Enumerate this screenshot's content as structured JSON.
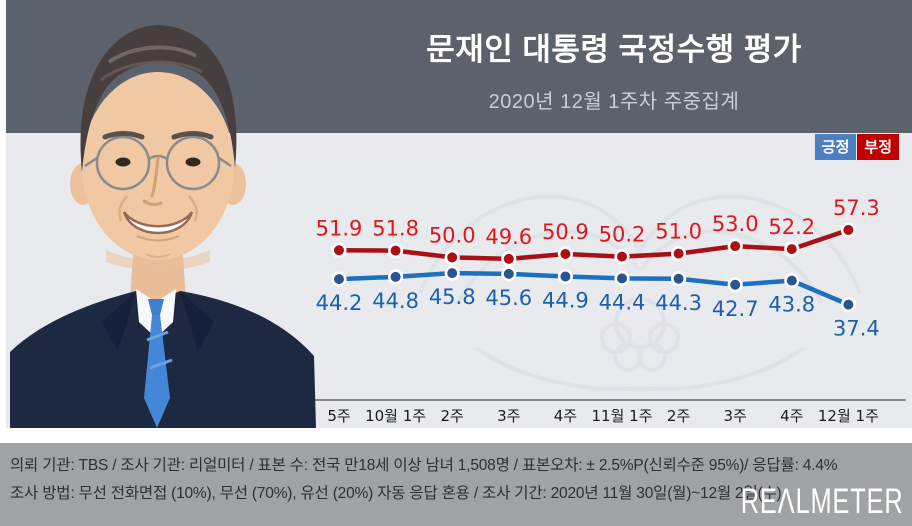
{
  "header": {
    "title": "문재인 대통령 국정수행 평가",
    "subtitle": "2020년 12월 1주차 주중집계"
  },
  "legend": {
    "positive": "긍정",
    "negative": "부정"
  },
  "chart_data": {
    "type": "line",
    "categories": [
      "5주",
      "10월 1주",
      "2주",
      "3주",
      "4주",
      "11월 1주",
      "2주",
      "3주",
      "4주",
      "12월 1주"
    ],
    "series": [
      {
        "name": "긍정",
        "role": "positive",
        "values": [
          44.2,
          44.8,
          45.8,
          45.6,
          44.9,
          44.4,
          44.3,
          42.7,
          43.8,
          37.4
        ]
      },
      {
        "name": "부정",
        "role": "negative",
        "values": [
          51.9,
          51.8,
          50.0,
          49.6,
          50.9,
          50.2,
          51.0,
          53.0,
          52.2,
          57.3
        ]
      }
    ],
    "title": "문재인 대통령 국정수행 평가",
    "subtitle": "2020년 12월 1주차 주중집계",
    "xlabel": "",
    "ylabel": "",
    "ylim": [
      35,
      60
    ],
    "grid": false,
    "legend_position": "top-right",
    "value_labels": true
  },
  "colors": {
    "header_bg": "#5c626b",
    "panel_bg": "#e8eaed",
    "positive_line": "#1d6fc0",
    "positive_point": "#2a5490",
    "positive_label": "#1b5fae",
    "negative_line": "#a81016",
    "negative_point": "#ae0f14",
    "negative_label": "#e0161f",
    "legend_positive_bg": "#4d7ebf",
    "legend_negative_bg": "#c00000",
    "axis_line": "#4d4d4d",
    "tick_label": "#1b1b1b",
    "footer_bg": "#a1a2a4"
  },
  "footer": {
    "line1": "의뢰 기관: TBS / 조사 기관: 리얼미터 / 표본 수: 전국 만18세 이상 남녀 1,508명  / 표본오차: ± 2.5%P(신뢰수준 95%)/ 응답률: 4.4%",
    "line2": "조사 방법: 무선 전화면접 (10%), 무선 (70%), 유선 (20%)  자동 응답 혼용 / 조사 기간: 2020년 11월 30일(월)~12월 2일(수)",
    "logo": "REΛLMETER"
  }
}
